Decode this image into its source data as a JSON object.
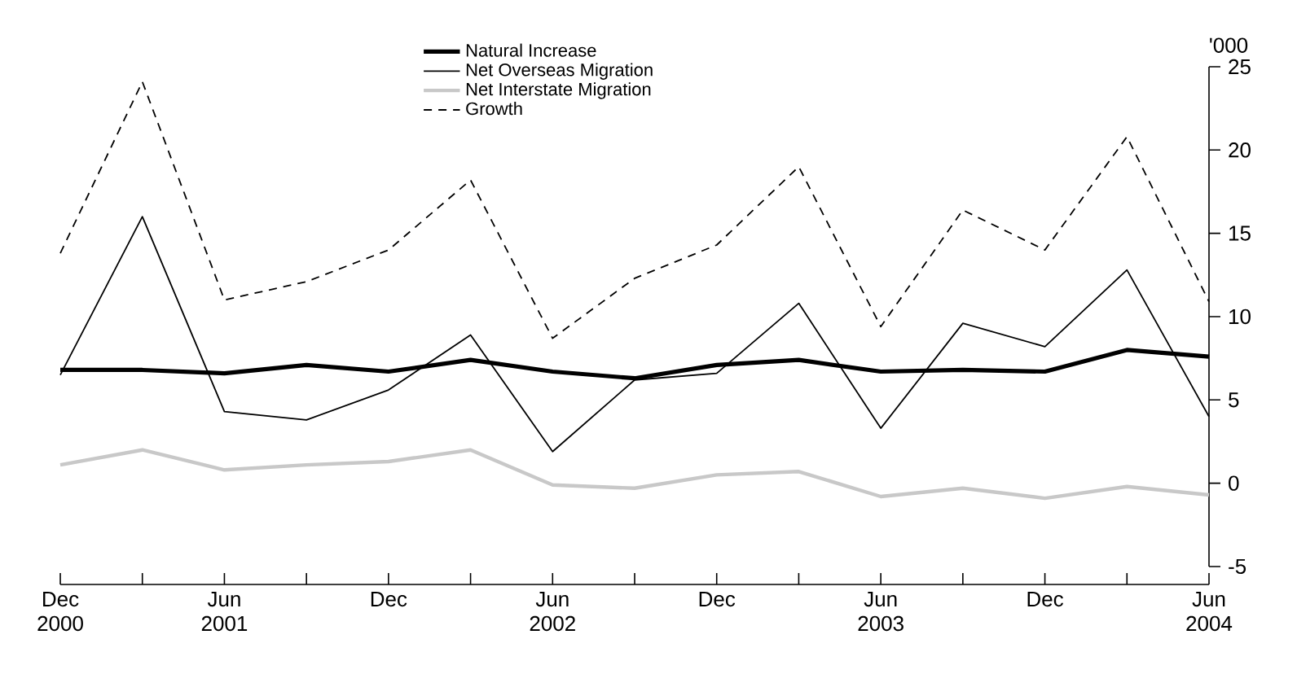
{
  "chart_data": {
    "type": "line",
    "ylabel": "'000",
    "categories": [
      "Dec 2000",
      null,
      "Jun 2001",
      null,
      "Dec",
      null,
      "Jun 2002",
      null,
      "Dec",
      null,
      "Jun 2003",
      null,
      "Dec",
      null,
      "Jun 2004"
    ],
    "series": [
      {
        "name": "Natural Increase",
        "color": "#000000",
        "line_style": "solid",
        "values": [
          6.8,
          6.8,
          6.6,
          7.1,
          6.7,
          7.4,
          6.7,
          6.3,
          7.1,
          7.4,
          6.7,
          6.8,
          6.7,
          8.0,
          7.6
        ]
      },
      {
        "name": "Net Overseas Migration",
        "color": "#000000",
        "line_style": "solid",
        "values": [
          6.5,
          16.0,
          4.3,
          3.8,
          5.6,
          8.9,
          1.9,
          6.2,
          6.6,
          10.8,
          3.3,
          9.6,
          8.2,
          12.8,
          4.0
        ]
      },
      {
        "name": "Net Interstate Migration",
        "color": "#c8c8c8",
        "line_style": "solid",
        "values": [
          1.1,
          2.0,
          0.8,
          1.1,
          1.3,
          2.0,
          -0.1,
          -0.3,
          0.5,
          0.7,
          -0.8,
          -0.3,
          -0.9,
          -0.2,
          -0.7
        ]
      },
      {
        "name": "Growth",
        "color": "#000000",
        "line_style": "dashed",
        "values": [
          13.8,
          24.1,
          11.0,
          12.1,
          14.0,
          18.2,
          8.7,
          12.3,
          14.3,
          19.0,
          9.4,
          16.4,
          14.0,
          20.8,
          10.9
        ]
      }
    ],
    "ylim": [
      -5,
      25
    ],
    "yticks": [
      -5,
      0,
      5,
      10,
      15,
      20,
      25
    ],
    "grid": false,
    "legend": "top",
    "marker": "none"
  }
}
